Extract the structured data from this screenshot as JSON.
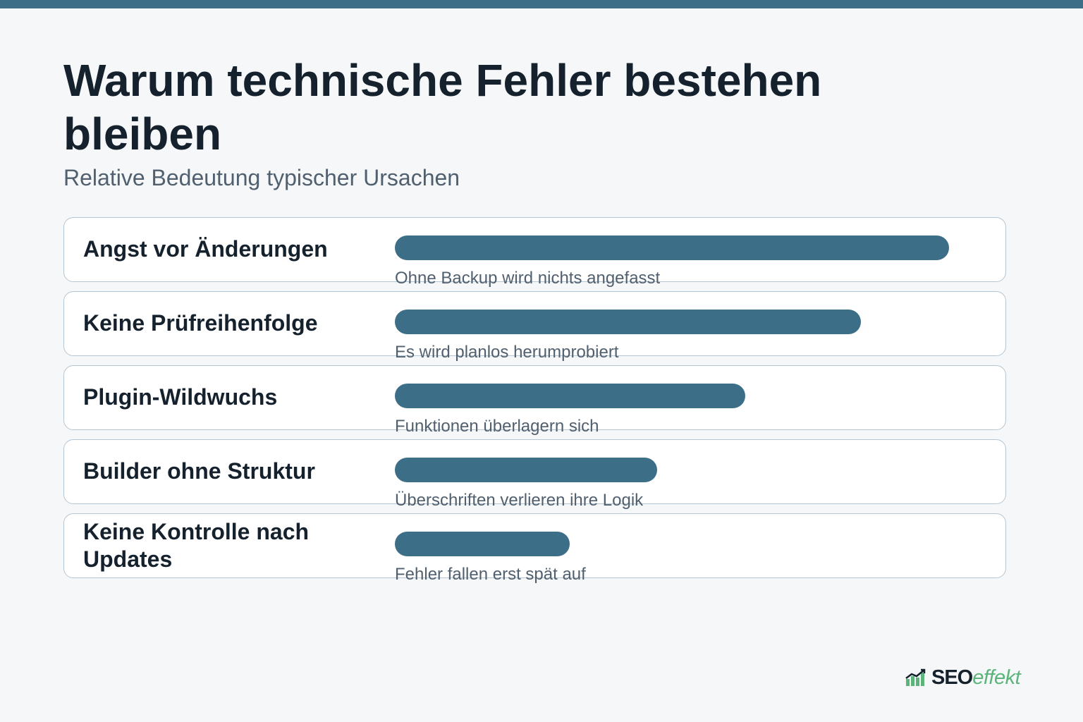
{
  "colors": {
    "accent": "#3d6e87",
    "heading": "#15212d",
    "muted": "#51606f",
    "brand_green": "#5bb57a"
  },
  "logo": {
    "part1": "SEO",
    "part2": "effekt",
    "icon": "chart-bars-icon"
  },
  "chart_data": {
    "type": "bar",
    "orientation": "horizontal",
    "title": "Warum technische Fehler bestehen bleiben",
    "subtitle": "Relative Bedeutung typischer Ursachen",
    "xlim": [
      0,
      100
    ],
    "grid": false,
    "categories": [
      "Angst vor Änderungen",
      "Keine Prüfreihenfolge",
      "Plugin-Wildwuchs",
      "Builder ohne Struktur",
      "Keine Kontrolle nach Updates"
    ],
    "values": [
      91,
      76.5,
      57.5,
      43,
      28.7
    ],
    "annotations": [
      "Ohne Backup wird nichts angefasst",
      "Es wird planlos herumprobiert",
      "Funktionen überlagern sich",
      "Überschriften verlieren ihre Logik",
      "Fehler fallen erst spät auf"
    ]
  }
}
